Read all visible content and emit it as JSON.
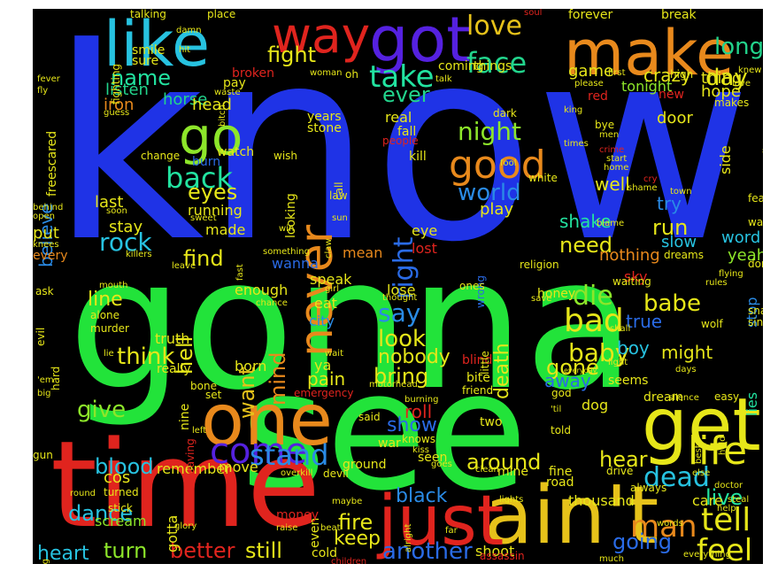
{
  "words": [
    {
      "text": "know",
      "color": "#1f33e6"
    },
    {
      "text": "gonna",
      "color": "#22e33a"
    },
    {
      "text": "see",
      "color": "#22e33a"
    },
    {
      "text": "time",
      "color": "#e0241e"
    },
    {
      "text": "one",
      "color": "#e8891c"
    },
    {
      "text": "ain't",
      "color": "#e6c21a"
    },
    {
      "text": "just",
      "color": "#e0241e"
    },
    {
      "text": "get",
      "color": "#e6e619"
    },
    {
      "text": "like",
      "color": "#27c2e0"
    },
    {
      "text": "make",
      "color": "#e8891c"
    },
    {
      "text": "got",
      "color": "#5521e0"
    },
    {
      "text": "way",
      "color": "#e0241e"
    },
    {
      "text": "never",
      "color": "#e8891c"
    },
    {
      "text": "go",
      "color": "#8de62a"
    },
    {
      "text": "life",
      "color": "#e6e619"
    },
    {
      "text": "good",
      "color": "#e8891c"
    },
    {
      "text": "come",
      "color": "#5521e0"
    },
    {
      "text": "love",
      "color": "#e6c21a"
    },
    {
      "text": "face",
      "color": "#22d48c"
    },
    {
      "text": "take",
      "color": "#22e3a0"
    },
    {
      "text": "fight",
      "color": "#e6e619"
    },
    {
      "text": "long",
      "color": "#22d48c"
    },
    {
      "text": "day",
      "color": "#e6e619"
    },
    {
      "text": "back",
      "color": "#22e3a0"
    },
    {
      "text": "night",
      "color": "#8de62a"
    },
    {
      "text": "right",
      "color": "#2a6be6"
    },
    {
      "text": "stand",
      "color": "#2a8be6"
    },
    {
      "text": "tell",
      "color": "#e6e619"
    },
    {
      "text": "feel",
      "color": "#e6e619"
    },
    {
      "text": "man",
      "color": "#e8891c"
    },
    {
      "text": "dead",
      "color": "#27c2e0"
    },
    {
      "text": "live",
      "color": "#22e3a0"
    },
    {
      "text": "world",
      "color": "#2a8be6"
    },
    {
      "text": "bad",
      "color": "#e6e619"
    },
    {
      "text": "die",
      "color": "#8de62a"
    },
    {
      "text": "babe",
      "color": "#e6e619"
    },
    {
      "text": "baby",
      "color": "#e6e619"
    },
    {
      "text": "say",
      "color": "#2a8be6"
    },
    {
      "text": "look",
      "color": "#e6e619"
    },
    {
      "text": "rock",
      "color": "#27c2e0"
    },
    {
      "text": "think",
      "color": "#e6e619"
    },
    {
      "text": "want",
      "color": "#e6c21a"
    },
    {
      "text": "mind",
      "color": "#e8891c"
    },
    {
      "text": "hell",
      "color": "#e6e619"
    },
    {
      "text": "find",
      "color": "#e6e619"
    },
    {
      "text": "eyes",
      "color": "#e6e619"
    },
    {
      "text": "give",
      "color": "#8de62a"
    },
    {
      "text": "blood",
      "color": "#27c2e0"
    },
    {
      "text": "dance",
      "color": "#27c2e0"
    },
    {
      "text": "heart",
      "color": "#27c2e0"
    },
    {
      "text": "turn",
      "color": "#8de62a"
    },
    {
      "text": "better",
      "color": "#e0241e"
    },
    {
      "text": "still",
      "color": "#e6e619"
    },
    {
      "text": "another",
      "color": "#2a6be6"
    },
    {
      "text": "around",
      "color": "#e6e619"
    },
    {
      "text": "hear",
      "color": "#e6e619"
    },
    {
      "text": "black",
      "color": "#2a8be6"
    },
    {
      "text": "fire",
      "color": "#e6e619"
    },
    {
      "text": "keep",
      "color": "#e6e619"
    },
    {
      "text": "going",
      "color": "#2a6be6"
    },
    {
      "text": "death",
      "color": "#e6e619"
    },
    {
      "text": "gone",
      "color": "#e6e619"
    },
    {
      "text": "bring",
      "color": "#e6e619"
    },
    {
      "text": "run",
      "color": "#e6e619"
    },
    {
      "text": "need",
      "color": "#e6e619"
    },
    {
      "text": "name",
      "color": "#22e3a0"
    },
    {
      "text": "ever",
      "color": "#22d48c"
    },
    {
      "text": "show",
      "color": "#2a6be6"
    },
    {
      "text": "believe",
      "color": "#2a8be6"
    },
    {
      "text": "line",
      "color": "#e6e619"
    },
    {
      "text": "pain",
      "color": "#e6e619"
    },
    {
      "text": "nobody",
      "color": "#e6e619"
    },
    {
      "text": "away",
      "color": "#2a6be6"
    },
    {
      "text": "roll",
      "color": "#e0241e"
    },
    {
      "text": "shake",
      "color": "#22e3a0"
    },
    {
      "text": "play",
      "color": "#e6e619"
    },
    {
      "text": "try",
      "color": "#2a8be6"
    },
    {
      "text": "slow",
      "color": "#27c2e0"
    },
    {
      "text": "word",
      "color": "#27c2e0"
    },
    {
      "text": "yeah",
      "color": "#8de62a"
    },
    {
      "text": "well",
      "color": "#e6e619"
    },
    {
      "text": "might",
      "color": "#e6e619"
    },
    {
      "text": "boy",
      "color": "#27c2e0"
    },
    {
      "text": "true",
      "color": "#2a6be6"
    },
    {
      "text": "stop",
      "color": "#2a8be6"
    },
    {
      "text": "lies",
      "color": "#22e3a0"
    },
    {
      "text": "sky",
      "color": "#e0241e"
    },
    {
      "text": "nothing",
      "color": "#e8891c"
    },
    {
      "text": "crazy",
      "color": "#e6e619"
    },
    {
      "text": "thing",
      "color": "#e6e619"
    },
    {
      "text": "hope",
      "color": "#e6e619"
    },
    {
      "text": "side",
      "color": "#e6e619"
    },
    {
      "text": "door",
      "color": "#e6e619"
    },
    {
      "text": "game",
      "color": "#e6e619"
    },
    {
      "text": "tonight",
      "color": "#8de62a"
    },
    {
      "text": "horse",
      "color": "#22d48c"
    },
    {
      "text": "head",
      "color": "#e6e619"
    },
    {
      "text": "iron",
      "color": "#e8891c"
    },
    {
      "text": "listen",
      "color": "#22d48c"
    },
    {
      "text": "last",
      "color": "#e6e619"
    },
    {
      "text": "stay",
      "color": "#e6e619"
    },
    {
      "text": "running",
      "color": "#e6e619"
    },
    {
      "text": "made",
      "color": "#e6e619"
    },
    {
      "text": "put",
      "color": "#e6e619"
    },
    {
      "text": "every",
      "color": "#e8891c"
    },
    {
      "text": "wanna",
      "color": "#2a6be6"
    },
    {
      "text": "mean",
      "color": "#e8891c"
    },
    {
      "text": "speak",
      "color": "#e6e619"
    },
    {
      "text": "eat",
      "color": "#e6e619"
    },
    {
      "text": "city",
      "color": "#2a8be6"
    },
    {
      "text": "born",
      "color": "#e6e619"
    },
    {
      "text": "ya",
      "color": "#e6e619"
    },
    {
      "text": "truth",
      "color": "#e6e619"
    },
    {
      "text": "enough",
      "color": "#e6e619"
    },
    {
      "text": "lose",
      "color": "#e6e619"
    },
    {
      "text": "honey",
      "color": "#e6e619"
    },
    {
      "text": "lost",
      "color": "#e0241e"
    },
    {
      "text": "eye",
      "color": "#e6e619"
    },
    {
      "text": "remember",
      "color": "#e6e619"
    },
    {
      "text": "war",
      "color": "#e6e619"
    },
    {
      "text": "ground",
      "color": "#e6e619"
    },
    {
      "text": "move",
      "color": "#e6e619"
    },
    {
      "text": "gotta",
      "color": "#e6e619"
    },
    {
      "text": "cos",
      "color": "#e6e619"
    },
    {
      "text": "scream",
      "color": "#8de62a"
    },
    {
      "text": "even",
      "color": "#e6e619"
    },
    {
      "text": "money",
      "color": "#e0241e"
    },
    {
      "text": "cold",
      "color": "#e6e619"
    },
    {
      "text": "shoot",
      "color": "#e6e619"
    },
    {
      "text": "thousand",
      "color": "#e6e619"
    },
    {
      "text": "care",
      "color": "#e6e619"
    },
    {
      "text": "road",
      "color": "#e6e619"
    },
    {
      "text": "dog",
      "color": "#e6e619"
    },
    {
      "text": "two",
      "color": "#e6e619"
    },
    {
      "text": "seen",
      "color": "#e6e619"
    },
    {
      "text": "dream",
      "color": "#e6e619"
    },
    {
      "text": "seems",
      "color": "#e6e619"
    },
    {
      "text": "bite",
      "color": "#e6e619"
    },
    {
      "text": "blind",
      "color": "#e0241e"
    },
    {
      "text": "real",
      "color": "#e6e619"
    },
    {
      "text": "fall",
      "color": "#e6e619"
    },
    {
      "text": "kill",
      "color": "#e6e619"
    },
    {
      "text": "years",
      "color": "#e6e619"
    },
    {
      "text": "stone",
      "color": "#e6e619"
    },
    {
      "text": "watch",
      "color": "#e6e619"
    },
    {
      "text": "burn",
      "color": "#2a6be6"
    },
    {
      "text": "pay",
      "color": "#e6e619"
    },
    {
      "text": "broken",
      "color": "#e0241e"
    },
    {
      "text": "sure",
      "color": "#e6e619"
    },
    {
      "text": "smile",
      "color": "#e6e619"
    },
    {
      "text": "talking",
      "color": "#e6e619"
    },
    {
      "text": "place",
      "color": "#e6e619"
    },
    {
      "text": "things",
      "color": "#e6e619"
    },
    {
      "text": "coming",
      "color": "#e6e619"
    },
    {
      "text": "forever",
      "color": "#e6e619"
    },
    {
      "text": "break",
      "color": "#e6e619"
    },
    {
      "text": "high",
      "color": "#e6e619"
    },
    {
      "text": "new",
      "color": "#e0241e"
    },
    {
      "text": "red",
      "color": "#e0241e"
    },
    {
      "text": "makes",
      "color": "#e6e619"
    },
    {
      "text": "fear",
      "color": "#e6e619"
    },
    {
      "text": "walk",
      "color": "#e6e619"
    },
    {
      "text": "done",
      "color": "#e6e619"
    },
    {
      "text": "rules",
      "color": "#e6e619"
    },
    {
      "text": "snake",
      "color": "#e6e619"
    },
    {
      "text": "sing",
      "color": "#e6e619"
    },
    {
      "text": "wolf",
      "color": "#e6e619"
    },
    {
      "text": "easy",
      "color": "#e6e619"
    },
    {
      "text": "steal",
      "color": "#e6e619"
    },
    {
      "text": "doctor",
      "color": "#e6e619"
    },
    {
      "text": "always",
      "color": "#e6e619"
    },
    {
      "text": "words",
      "color": "#e6e619"
    },
    {
      "text": "everything",
      "color": "#e6e619"
    },
    {
      "text": "much",
      "color": "#e6e619"
    },
    {
      "text": "assassin",
      "color": "#e0241e"
    },
    {
      "text": "children",
      "color": "#e0241e"
    },
    {
      "text": "raise",
      "color": "#e6e619"
    },
    {
      "text": "beat",
      "color": "#e6e619"
    },
    {
      "text": "glory",
      "color": "#e6e619"
    },
    {
      "text": "stick",
      "color": "#e6e619"
    },
    {
      "text": "turned",
      "color": "#e6e619"
    },
    {
      "text": "leaving",
      "color": "#e0241e"
    },
    {
      "text": "set",
      "color": "#e6e619"
    },
    {
      "text": "hard",
      "color": "#e6e619"
    },
    {
      "text": "evil",
      "color": "#e6e619"
    },
    {
      "text": "ask",
      "color": "#e6e619"
    },
    {
      "text": "alone",
      "color": "#e6e619"
    },
    {
      "text": "murder",
      "color": "#e6e619"
    },
    {
      "text": "really",
      "color": "#e6e619"
    },
    {
      "text": "nine",
      "color": "#e6e619"
    },
    {
      "text": "bone",
      "color": "#e6e619"
    },
    {
      "text": "emergency",
      "color": "#e0241e"
    },
    {
      "text": "friend",
      "color": "#e6e619"
    },
    {
      "text": "burning",
      "color": "#e6e619"
    },
    {
      "text": "motorhead",
      "color": "#e6e619"
    },
    {
      "text": "little",
      "color": "#e6e619"
    },
    {
      "text": "wrong",
      "color": "#2a6be6"
    },
    {
      "text": "thought",
      "color": "#e6e619"
    },
    {
      "text": "girl",
      "color": "#e6e619"
    },
    {
      "text": "religion",
      "color": "#e6e619"
    },
    {
      "text": "dreams",
      "color": "#e6e619"
    },
    {
      "text": "waiting",
      "color": "#e6e619"
    },
    {
      "text": "ones",
      "color": "#e6e619"
    },
    {
      "text": "looking",
      "color": "#e6e619"
    },
    {
      "text": "law",
      "color": "#e6e619"
    },
    {
      "text": "call",
      "color": "#e6e619"
    },
    {
      "text": "wish",
      "color": "#e6e619"
    },
    {
      "text": "change",
      "color": "#e6e619"
    },
    {
      "text": "people",
      "color": "#e0241e"
    },
    {
      "text": "dark",
      "color": "#e6e619"
    },
    {
      "text": "white",
      "color": "#e6e619"
    },
    {
      "text": "fool",
      "color": "#e6e619"
    },
    {
      "text": "men",
      "color": "#e6e619"
    },
    {
      "text": "bye",
      "color": "#e6e619"
    },
    {
      "text": "crime",
      "color": "#e0241e"
    },
    {
      "text": "start",
      "color": "#e6e619"
    },
    {
      "text": "home",
      "color": "#e6e619"
    },
    {
      "text": "shame",
      "color": "#e6e619"
    },
    {
      "text": "blame",
      "color": "#e6e619"
    },
    {
      "text": "town",
      "color": "#e6e619"
    },
    {
      "text": "cry",
      "color": "#e0241e"
    },
    {
      "text": "freescared",
      "color": "#e6e619"
    },
    {
      "text": "fighting",
      "color": "#e6e619"
    },
    {
      "text": "hit",
      "color": "#e6e619"
    },
    {
      "text": "damn",
      "color": "#e6e619"
    },
    {
      "text": "soul",
      "color": "#e0241e"
    },
    {
      "text": "knew",
      "color": "#e6e619"
    },
    {
      "text": "please",
      "color": "#e6e619"
    },
    {
      "text": "king",
      "color": "#e6e619"
    },
    {
      "text": "first",
      "color": "#e6e619"
    },
    {
      "text": "oh",
      "color": "#e6e619"
    },
    {
      "text": "talk",
      "color": "#e6e619"
    },
    {
      "text": "woman",
      "color": "#e6e619"
    },
    {
      "text": "waste",
      "color": "#e6e619"
    },
    {
      "text": "guess",
      "color": "#e6e619"
    },
    {
      "text": "behind",
      "color": "#e6e619"
    },
    {
      "text": "open",
      "color": "#e6e619"
    },
    {
      "text": "soon",
      "color": "#e6e619"
    },
    {
      "text": "knees",
      "color": "#e6e619"
    },
    {
      "text": "killers",
      "color": "#e6e619"
    },
    {
      "text": "sweet",
      "color": "#e6e619"
    },
    {
      "text": "sun",
      "color": "#e6e619"
    },
    {
      "text": "win",
      "color": "#e6e619"
    },
    {
      "text": "something",
      "color": "#e6e619"
    },
    {
      "text": "claw",
      "color": "#e6e619"
    },
    {
      "text": "leave",
      "color": "#e6e619"
    },
    {
      "text": "mouth",
      "color": "#e6e619"
    },
    {
      "text": "chance",
      "color": "#e6e619"
    },
    {
      "text": "save",
      "color": "#e6e619"
    },
    {
      "text": "shall",
      "color": "#e6e619"
    },
    {
      "text": "light",
      "color": "#e6e619"
    },
    {
      "text": "days",
      "color": "#e6e619"
    },
    {
      "text": "silence",
      "color": "#e6e619"
    },
    {
      "text": "everyday",
      "color": "#e6e619"
    },
    {
      "text": "god",
      "color": "#e6e619"
    },
    {
      "text": "said",
      "color": "#e6e619"
    },
    {
      "text": "'til",
      "color": "#e6e619"
    },
    {
      "text": "told",
      "color": "#e6e619"
    },
    {
      "text": "knows",
      "color": "#e6e619"
    },
    {
      "text": "kiss",
      "color": "#e6e619"
    },
    {
      "text": "goes",
      "color": "#e6e619"
    },
    {
      "text": "clean",
      "color": "#e6e619"
    },
    {
      "text": "mine",
      "color": "#e6e619"
    },
    {
      "text": "fine",
      "color": "#e6e619"
    },
    {
      "text": "drive",
      "color": "#e6e619"
    },
    {
      "text": "lights",
      "color": "#e6e619"
    },
    {
      "text": "maybe",
      "color": "#e6e619"
    },
    {
      "text": "alright",
      "color": "#e6e619"
    },
    {
      "text": "far",
      "color": "#e6e619"
    },
    {
      "text": "else",
      "color": "#e6e619"
    },
    {
      "text": "help",
      "color": "#e6e619"
    },
    {
      "text": "best",
      "color": "#e6e619"
    },
    {
      "text": "hold",
      "color": "#e6e619"
    },
    {
      "text": "overkill",
      "color": "#e6e619"
    },
    {
      "text": "devil",
      "color": "#e6e619"
    },
    {
      "text": "round",
      "color": "#e6e619"
    },
    {
      "text": "gun",
      "color": "#e6e619"
    },
    {
      "text": "living",
      "color": "#e6e619"
    },
    {
      "text": "'em",
      "color": "#e6e619"
    },
    {
      "text": "big",
      "color": "#e6e619"
    },
    {
      "text": "wait",
      "color": "#e6e619"
    },
    {
      "text": "lie",
      "color": "#e6e619"
    },
    {
      "text": "fast",
      "color": "#e6e619"
    },
    {
      "text": "flying",
      "color": "#e6e619"
    },
    {
      "text": "vibrator",
      "color": "#e6e619"
    },
    {
      "text": "fever",
      "color": "#e6e619"
    },
    {
      "text": "fly",
      "color": "#e6e619"
    },
    {
      "text": "left",
      "color": "#e6e619"
    },
    {
      "text": "bitch",
      "color": "#e6e619"
    },
    {
      "text": "times",
      "color": "#e6e619"
    },
    {
      "text": "love",
      "color": "#e6e619"
    }
  ]
}
